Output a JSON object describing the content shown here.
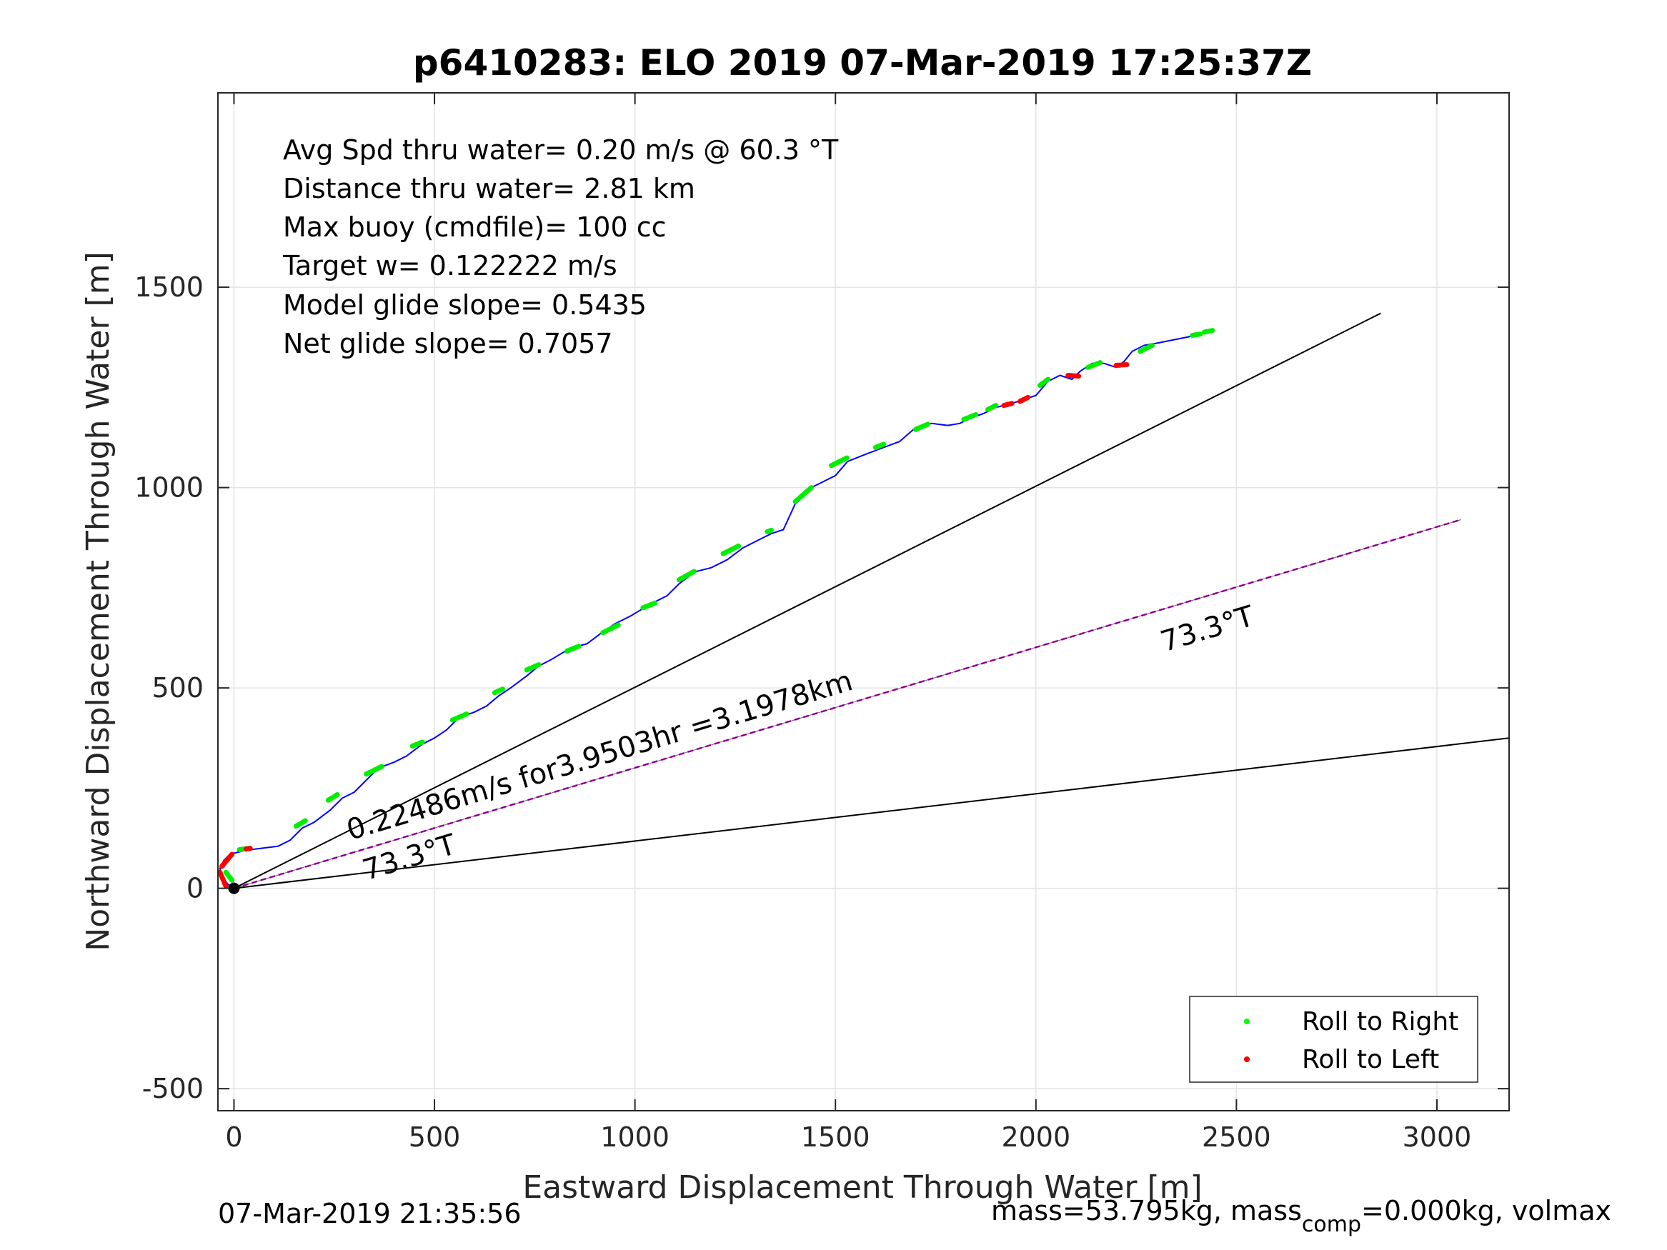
{
  "chart_data": {
    "type": "line",
    "title": "p6410283: ELO 2019 07-Mar-2019 17:25:37Z",
    "xlabel": "Eastward Displacement Through Water [m]",
    "ylabel": "Northward Displacement Through Water [m]",
    "xlim": [
      -40,
      3180
    ],
    "ylim": [
      -555,
      1985
    ],
    "xticks": [
      0,
      500,
      1000,
      1500,
      2000,
      2500,
      3000
    ],
    "yticks": [
      -500,
      0,
      500,
      1000,
      1500
    ],
    "xtick_labels": [
      "0",
      "500",
      "1000",
      "1500",
      "2000",
      "2500",
      "3000"
    ],
    "ytick_labels": [
      "-500",
      "0",
      "500",
      "1000",
      "1500"
    ],
    "grid": true,
    "info_lines": [
      "Avg Spd thru water=  0.20 m/s @  60.3 °T",
      "Distance thru water=  2.81 km",
      "Max buoy (cmdfile)= 100 cc",
      "Target w= 0.122222 m/s",
      "Model glide slope= 0.5435",
      "Net glide slope= 0.7057"
    ],
    "track": {
      "name": "track",
      "color": "#0000ff",
      "x": [
        0,
        -15,
        -30,
        -35,
        -25,
        -10,
        30,
        70,
        110,
        140,
        170,
        200,
        240,
        270,
        300,
        330,
        360,
        400,
        430,
        470,
        500,
        530,
        560,
        600,
        630,
        660,
        690,
        730,
        760,
        790,
        840,
        880,
        920,
        950,
        990,
        1040,
        1080,
        1110,
        1150,
        1190,
        1230,
        1270,
        1310,
        1340,
        1370,
        1400,
        1430,
        1460,
        1500,
        1530,
        1580,
        1620,
        1660,
        1700,
        1740,
        1780,
        1810,
        1840,
        1870,
        1900,
        1940,
        1970,
        2000,
        2030,
        2060,
        2090,
        2110,
        2140,
        2170,
        2200,
        2220,
        2240,
        2270,
        2300,
        2350,
        2400,
        2440
      ],
      "y": [
        0,
        10,
        30,
        50,
        70,
        85,
        95,
        100,
        105,
        120,
        150,
        165,
        195,
        225,
        240,
        270,
        300,
        315,
        330,
        360,
        375,
        395,
        425,
        440,
        455,
        480,
        500,
        530,
        555,
        570,
        600,
        610,
        640,
        660,
        680,
        710,
        730,
        760,
        790,
        800,
        820,
        850,
        870,
        885,
        895,
        960,
        995,
        1010,
        1030,
        1065,
        1085,
        1100,
        1115,
        1150,
        1160,
        1155,
        1160,
        1175,
        1185,
        1200,
        1210,
        1220,
        1230,
        1265,
        1280,
        1270,
        1290,
        1310,
        1310,
        1300,
        1315,
        1340,
        1355,
        1360,
        1370,
        1380,
        1390
      ]
    },
    "roll_right_segments": [
      [
        [
          155,
          155
        ],
        [
          180,
          170
        ]
      ],
      [
        [
          235,
          220
        ],
        [
          260,
          235
        ]
      ],
      [
        [
          330,
          285
        ],
        [
          370,
          305
        ]
      ],
      [
        [
          445,
          355
        ],
        [
          470,
          365
        ]
      ],
      [
        [
          545,
          420
        ],
        [
          580,
          435
        ]
      ],
      [
        [
          650,
          488
        ],
        [
          670,
          497
        ]
      ],
      [
        [
          730,
          545
        ],
        [
          760,
          558
        ]
      ],
      [
        [
          830,
          592
        ],
        [
          860,
          604
        ]
      ],
      [
        [
          920,
          638
        ],
        [
          960,
          658
        ]
      ],
      [
        [
          1020,
          700
        ],
        [
          1050,
          712
        ]
      ],
      [
        [
          1110,
          770
        ],
        [
          1150,
          792
        ]
      ],
      [
        [
          1220,
          835
        ],
        [
          1260,
          855
        ]
      ],
      [
        [
          1330,
          890
        ],
        [
          1345,
          895
        ]
      ],
      [
        [
          1400,
          965
        ],
        [
          1440,
          1000
        ]
      ],
      [
        [
          1490,
          1055
        ],
        [
          1530,
          1075
        ]
      ],
      [
        [
          1600,
          1100
        ],
        [
          1620,
          1108
        ]
      ],
      [
        [
          1700,
          1145
        ],
        [
          1730,
          1158
        ]
      ],
      [
        [
          1820,
          1170
        ],
        [
          1850,
          1182
        ]
      ],
      [
        [
          1880,
          1195
        ],
        [
          1900,
          1205
        ]
      ],
      [
        [
          2010,
          1255
        ],
        [
          2030,
          1270
        ]
      ],
      [
        [
          2130,
          1300
        ],
        [
          2160,
          1312
        ]
      ],
      [
        [
          2260,
          1340
        ],
        [
          2290,
          1355
        ]
      ],
      [
        [
          2390,
          1380
        ],
        [
          2410,
          1383
        ]
      ],
      [
        [
          2420,
          1388
        ],
        [
          2440,
          1392
        ]
      ],
      [
        [
          -5,
          20
        ],
        [
          -20,
          40
        ]
      ],
      [
        [
          40,
          100
        ],
        [
          10,
          96
        ]
      ]
    ],
    "roll_left_segments": [
      [
        [
          -20,
          5
        ],
        [
          -35,
          40
        ]
      ],
      [
        [
          -30,
          55
        ],
        [
          -5,
          85
        ]
      ],
      [
        [
          1920,
          1205
        ],
        [
          1940,
          1210
        ]
      ],
      [
        [
          1960,
          1215
        ],
        [
          1980,
          1225
        ]
      ],
      [
        [
          2080,
          1280
        ],
        [
          2110,
          1278
        ]
      ],
      [
        [
          2200,
          1305
        ],
        [
          2230,
          1307
        ]
      ],
      [
        [
          30,
          98
        ],
        [
          45,
          100
        ]
      ]
    ],
    "lines": [
      {
        "name": "black-line-upper",
        "color": "#000000",
        "x": [
          0,
          2860
        ],
        "y": [
          0,
          1435
        ]
      },
      {
        "name": "black-line-lower",
        "color": "#000000",
        "x": [
          0,
          3180
        ],
        "y": [
          0,
          375
        ]
      },
      {
        "name": "magenta-dashed-line",
        "color": "#cc00cc",
        "x": [
          0,
          3060
        ],
        "y": [
          0,
          920
        ]
      }
    ],
    "annotations": [
      {
        "text": "0.22486m/s for3.9503hr =3.1978km",
        "x": 290,
        "y": 120,
        "angle": -16.7
      },
      {
        "text": "73.3°T",
        "x": 330,
        "y": 20,
        "angle": -16.7
      },
      {
        "text": "73.3°T",
        "x": 2320,
        "y": 590,
        "angle": -16.7
      }
    ],
    "legend": {
      "position": "bottom-right",
      "entries": [
        {
          "label": "Roll to Right",
          "color": "#00ff00"
        },
        {
          "label": "Roll to Left",
          "color": "#ff0000"
        }
      ]
    },
    "footer_left": "07-Mar-2019 21:35:56",
    "footer_right_prefix": "mass=53.795kg, mass",
    "footer_right_sub": "comp",
    "footer_right_suffix": "=0.000kg, volmax"
  }
}
